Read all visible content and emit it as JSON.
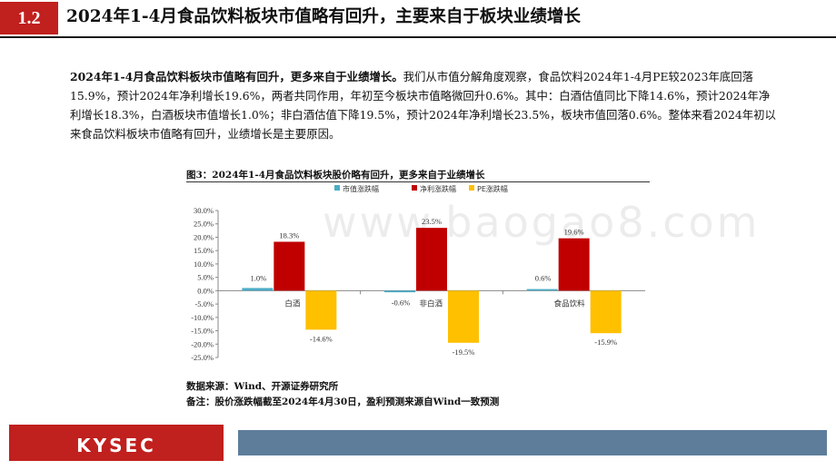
{
  "header": {
    "section_number": "1.2",
    "title": "2024年1-4月食品饮料板块市值略有回升，主要来自于板块业绩增长"
  },
  "paragraph": {
    "lead": "2024年1-4月食品饮料板块市值略有回升，更多来自于业绩增长。",
    "body": "我们从市值分解角度观察，食品饮料2024年1-4月PE较2023年底回落15.9%，预计2024年净利增长19.6%，两者共同作用，年初至今板块市值略微回升0.6%。其中：白酒估值同比下降14.6%，预计2024年净利增长18.3%，白酒板块市值增长1.0%；非白酒估值下降19.5%，预计2024年净利增长23.5%，板块市值回落0.6%。整体来看2024年初以来食品饮料板块市值略有回升，业绩增长是主要原因。"
  },
  "figure": {
    "title": "图3：2024年1-4月食品饮料板块股价略有回升，更多来自于业绩增长",
    "source": "数据来源：Wind、开源证券研究所",
    "note": "备注：股价涨跌幅截至2024年4月30日，盈利预测来源自Wind一致预测"
  },
  "watermark": "www.baogao8.com",
  "footer": {
    "logo": "KYSEC"
  },
  "chart_data": {
    "type": "bar",
    "categories": [
      "白酒",
      "非白酒",
      "食品饮料"
    ],
    "series": [
      {
        "name": "市值涨跌幅",
        "color": "#4BACC6",
        "values": [
          1.0,
          -0.6,
          0.6
        ]
      },
      {
        "name": "净利涨跌幅",
        "color": "#C00000",
        "values": [
          18.3,
          23.5,
          19.6
        ]
      },
      {
        "name": "PE涨跌幅",
        "color": "#FFC000",
        "values": [
          -14.6,
          -19.5,
          -15.9
        ]
      }
    ],
    "ylim": [
      -25,
      30
    ],
    "yticks": [
      "30.0%",
      "25.0%",
      "20.0%",
      "15.0%",
      "10.0%",
      "5.0%",
      "0.0%",
      "-5.0%",
      "-10.0%",
      "-15.0%",
      "-20.0%",
      "-25.0%"
    ],
    "value_labels": [
      [
        "1.0%",
        "18.3%",
        "-14.6%"
      ],
      [
        "-0.6%",
        "23.5%",
        "-19.5%"
      ],
      [
        "0.6%",
        "19.6%",
        "-15.9%"
      ]
    ],
    "legend_position": "top-center",
    "grid": false
  }
}
